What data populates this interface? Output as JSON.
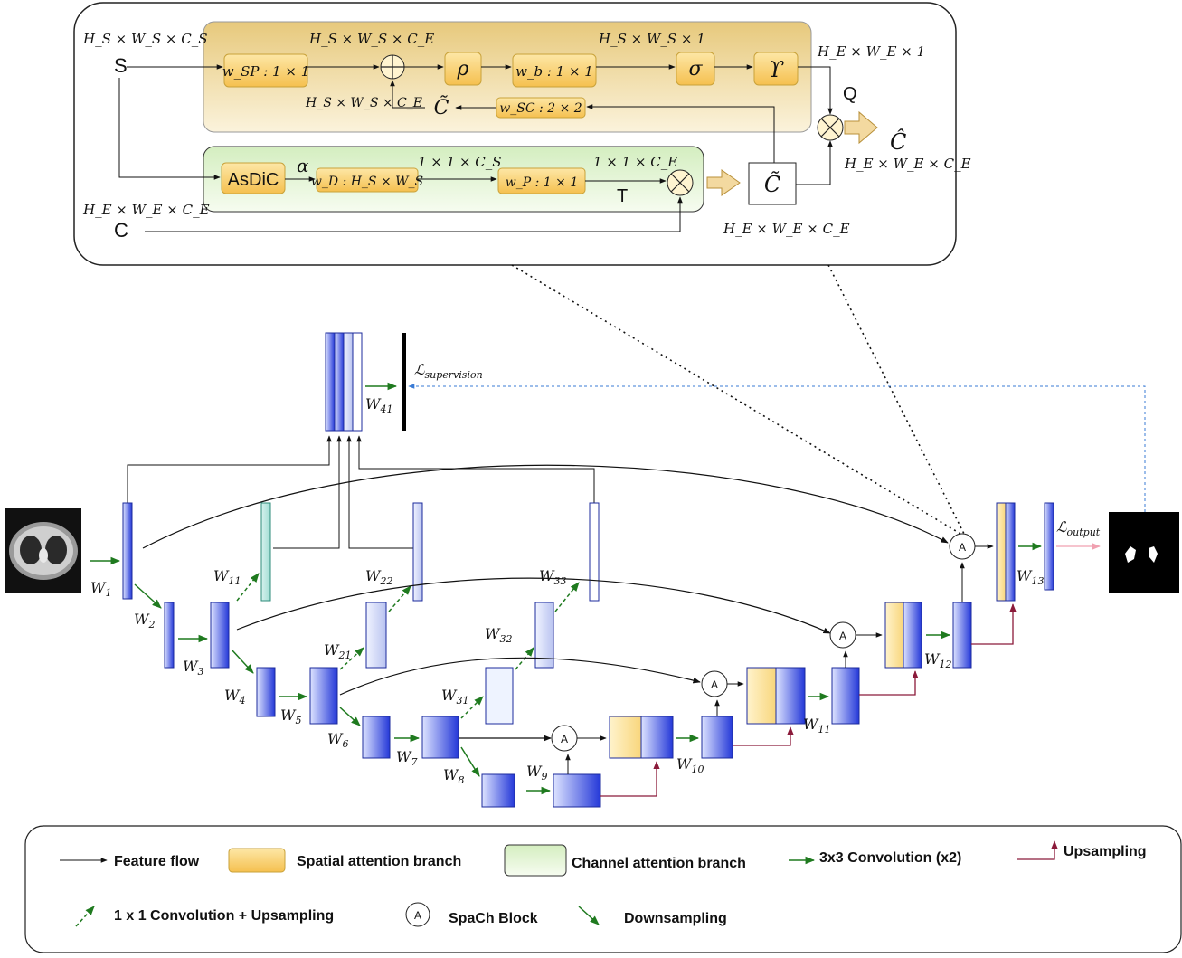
{
  "colors": {
    "spatial_fill": "#efd79a",
    "channel_fill": "#e6f5d8",
    "orange_box": "#f7c85a",
    "conv_green": "#1f7a1f",
    "upsample_red": "#8b1a3a",
    "block_blue": "#2438d8",
    "supervision_blue": "#3a7bd5"
  },
  "icons": [
    "ct-scan-input-image",
    "segmentation-output-image",
    "circled-plus-icon",
    "circled-times-icon",
    "hollow-arrow-icon",
    "spach-block-icon"
  ],
  "spach": {
    "S_dims": "H_S × W_S × C_S",
    "S_label": "S",
    "C_dims": "H_E × W_E × C_E",
    "C_label": "C",
    "w_sp": "w_SP : 1 × 1",
    "plus_dims": "H_S × W_S × C_E",
    "rho": "ρ",
    "w_b": "w_b : 1 × 1",
    "b_dims": "H_S × W_S × 1",
    "sigma": "σ",
    "upsilon": "ϒ",
    "ups_dims": "H_E × W_E × 1",
    "Q": "Q",
    "C_hat": "Ĉ",
    "C_hat_dims": "H_E × W_E × C_E",
    "C_tilde_left_dims": "H_S × W_S × C_E",
    "C_tilde": "C̃",
    "w_sc": "w_SC : 2 × 2",
    "asdic": "AsDiC",
    "alpha": "α",
    "w_d": "w_D : H_S × W_S",
    "d_dims": "1 × 1 × C_S",
    "w_p": "w_P : 1 × 1",
    "p_dims": "1 × 1 × C_E",
    "T": "T",
    "C_tilde_box_dims": "H_E × W_E × C_E"
  },
  "network": {
    "L_supervision": "ℒ",
    "L_supervision_sub": "supervision",
    "L_output": "ℒ",
    "L_output_sub": "output",
    "spach_block": "A",
    "weights": {
      "w1": "W",
      "w1s": "1",
      "w2": "W",
      "w2s": "2",
      "w3": "W",
      "w3s": "3",
      "w4": "W",
      "w4s": "4",
      "w5": "W",
      "w5s": "5",
      "w6": "W",
      "w6s": "6",
      "w7": "W",
      "w7s": "7",
      "w8": "W",
      "w8s": "8",
      "w9": "W",
      "w9s": "9",
      "w10": "W",
      "w10s": "10",
      "w11b": "W",
      "w11bs": "11",
      "w12": "W",
      "w12s": "12",
      "w13": "W",
      "w13s": "13",
      "w11": "W",
      "w11s": "11",
      "w21": "W",
      "w21s": "21",
      "w22": "W",
      "w22s": "22",
      "w31": "W",
      "w31s": "31",
      "w32": "W",
      "w32s": "32",
      "w33": "W",
      "w33s": "33",
      "w41": "W",
      "w41s": "41"
    }
  },
  "legend": {
    "feature_flow": "Feature flow",
    "spatial": "Spatial attention branch",
    "channel": "Channel attention branch",
    "conv3": "3x3 Convolution (x2)",
    "upsampling": "Upsampling",
    "conv1": "1 x 1 Convolution + Upsampling",
    "spach": "SpaCh Block",
    "spach_icon": "A",
    "downsampling": "Downsampling"
  }
}
